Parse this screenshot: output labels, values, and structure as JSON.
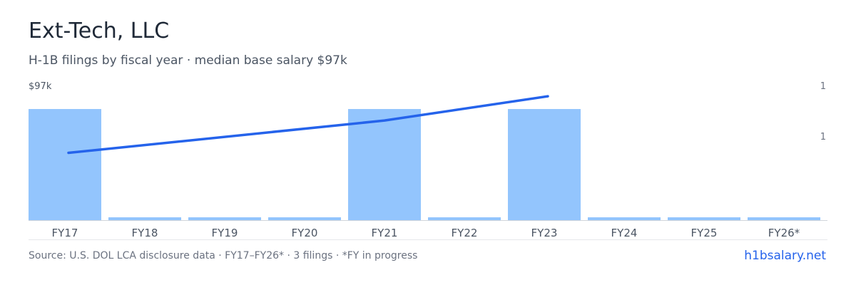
{
  "header": {
    "title": "Ext-Tech, LLC",
    "subtitle": "H-1B filings by fiscal year · median base salary $97k"
  },
  "chart_data": {
    "type": "bar",
    "categories": [
      "FY17",
      "FY18",
      "FY19",
      "FY20",
      "FY21",
      "FY22",
      "FY23",
      "FY24",
      "FY25",
      "FY26*"
    ],
    "series": [
      {
        "values": [
          1,
          0,
          0,
          0,
          1,
          0,
          1,
          0,
          0,
          0
        ],
        "color": "#93c5fd"
      }
    ],
    "overlay_line": {
      "x": [
        "FY17",
        "FY21",
        "FY23"
      ],
      "values": [
        0.5,
        0.74,
        0.92
      ],
      "color": "#2563eb"
    },
    "left_axis_label": "$97k",
    "right_axis_labels": [
      "1",
      "1"
    ],
    "bar_color": "#93c5fd",
    "line_color": "#2563eb",
    "grid": false
  },
  "footer": {
    "source": "Source: U.S. DOL LCA disclosure data · FY17–FY26* · 3 filings · *FY in progress",
    "brand": "h1bsalary.net"
  }
}
